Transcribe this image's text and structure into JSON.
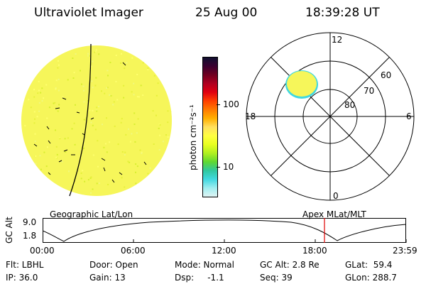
{
  "header": {
    "instrument": "Ultraviolet Imager",
    "date": "25 Aug 00",
    "time": "18:39:28 UT"
  },
  "colorbar": {
    "label": "photon cm⁻²s⁻¹",
    "ticks": [
      "100",
      "10"
    ],
    "colors": [
      "#101030",
      "#3a0030",
      "#700020",
      "#b00020",
      "#e00010",
      "#ff4000",
      "#ff7a00",
      "#ffb000",
      "#ffe060",
      "#ffff40",
      "#e8ff20",
      "#b0f020",
      "#60d830",
      "#30c8a0",
      "#40d8e0",
      "#a0eef0",
      "#e0f4f4"
    ]
  },
  "polar_plot": {
    "clock_labels": [
      "12",
      "6",
      "0",
      "18"
    ],
    "latitude_labels": [
      "60",
      "70",
      "80"
    ]
  },
  "image_panel": {
    "fill_color": "#f6f65a",
    "limb_color": "#a8ecd8"
  },
  "projection_labels": {
    "left": "Geographic Lat/Lon",
    "right": "Apex MLat/MLT"
  },
  "altitude_plot": {
    "axis_label": "GC Alt",
    "y_ticks": [
      "9.0",
      "1.8"
    ],
    "x_ticks": [
      "00:00",
      "06:00",
      "12:00",
      "18:00",
      "23:59"
    ],
    "marker_time": "18:39",
    "marker_color": "#e00000"
  },
  "info": {
    "filter": "Flt: LBHL",
    "ip": "IP: 36.0",
    "door": "Door: Open",
    "gain": "Gain: 13",
    "mode": "Mode: Normal",
    "dsp": "Dsp:     -1.1",
    "gc_alt": "GC Alt: 2.8 Re",
    "seq": "Seq: 39",
    "glat": "GLat:  59.4",
    "glon": "GLon: 288.7"
  }
}
